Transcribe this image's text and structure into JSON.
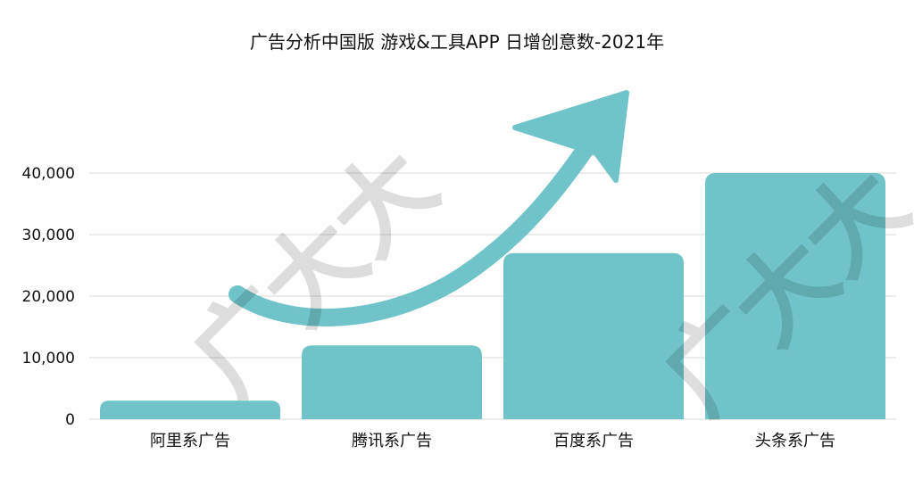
{
  "chart_data": {
    "type": "bar",
    "title": "广告分析中国版 游戏&工具APP 日增创意数-2021年",
    "categories": [
      "阿里系广告",
      "腾讯系广告",
      "百度系广告",
      "头条系广告"
    ],
    "values": [
      3000,
      12000,
      27000,
      40000
    ],
    "ylim": [
      0,
      40000
    ],
    "yticks": [
      0,
      10000,
      20000,
      30000,
      40000
    ],
    "ytick_labels": [
      "0",
      "10,000",
      "20,000",
      "30,000",
      "40,000"
    ],
    "xlabel": "",
    "ylabel": "",
    "grid": true,
    "legend": "none"
  },
  "colors": {
    "bar": "#6fc3c9",
    "arrow": "#6fc3c9",
    "grid": "#d9d9d9",
    "text": "#111111",
    "watermark": "#000000"
  },
  "watermark": {
    "text": "广大大"
  }
}
